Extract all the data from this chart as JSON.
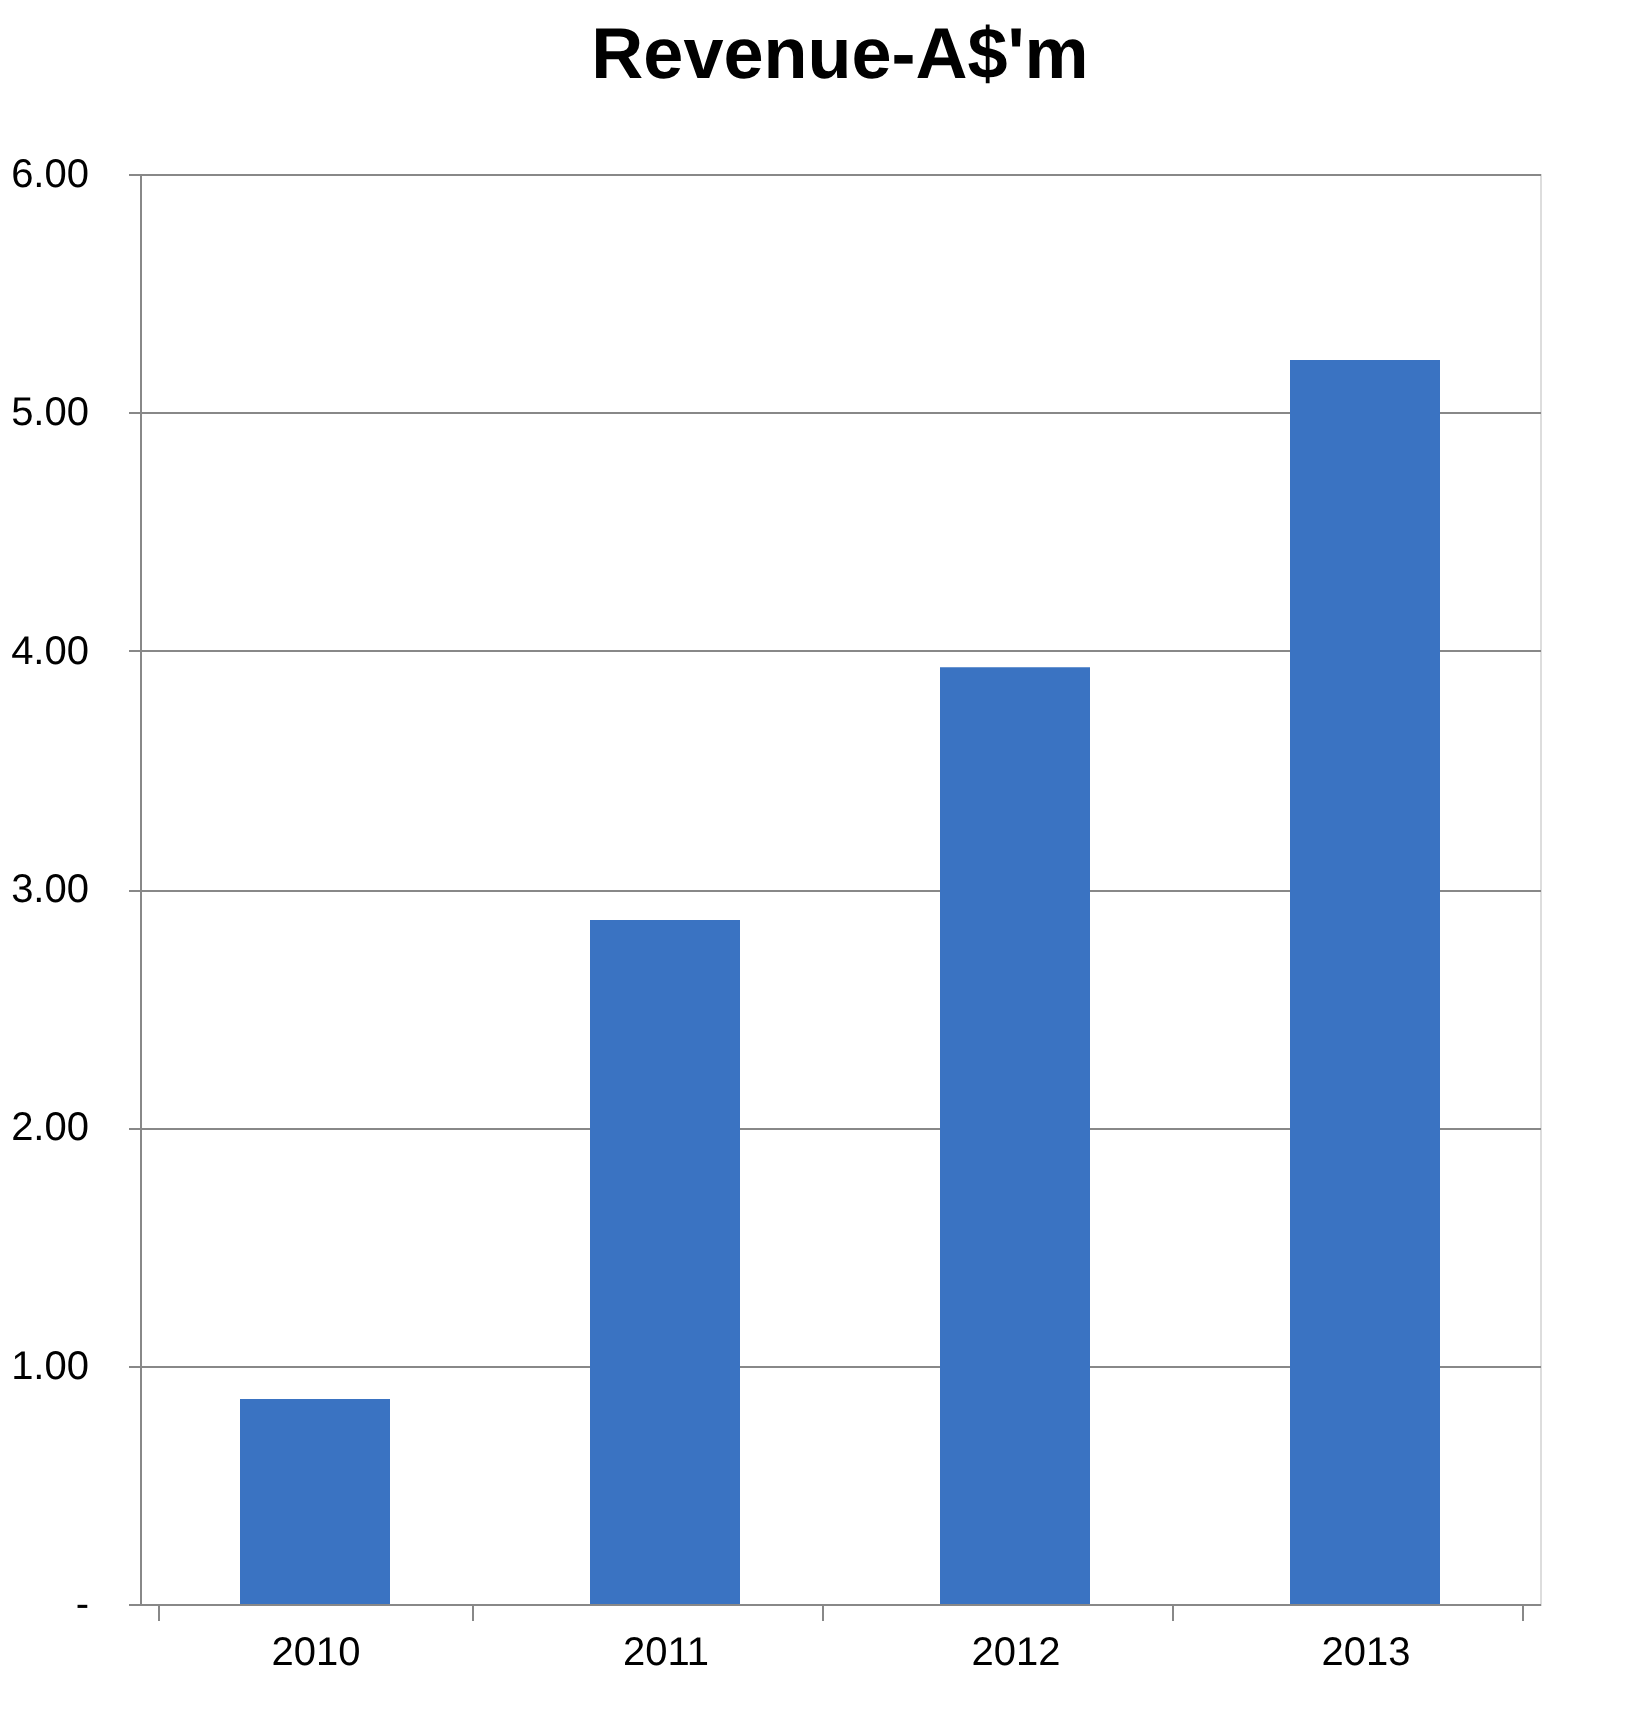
{
  "chart_data": {
    "type": "bar",
    "title": "Revenue-A$'m",
    "categories": [
      "2010",
      "2011",
      "2012",
      "2013"
    ],
    "values": [
      0.86,
      2.87,
      3.93,
      5.22
    ],
    "color": "#3a73c2",
    "ylim": [
      0,
      6
    ],
    "yticks": [
      {
        "value": 0,
        "label": "-"
      },
      {
        "value": 1,
        "label": "1.00"
      },
      {
        "value": 2,
        "label": "2.00"
      },
      {
        "value": 3,
        "label": "3.00"
      },
      {
        "value": 4,
        "label": "4.00"
      },
      {
        "value": 5,
        "label": "5.00"
      },
      {
        "value": 6,
        "label": "6.00"
      }
    ],
    "grid": "y"
  }
}
